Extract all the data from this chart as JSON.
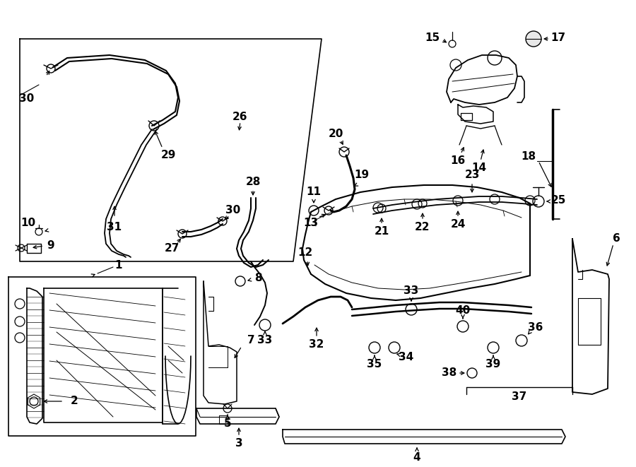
{
  "bg_color": "#ffffff",
  "line_color": "#000000",
  "fig_w": 9.0,
  "fig_h": 6.61,
  "dpi": 100
}
